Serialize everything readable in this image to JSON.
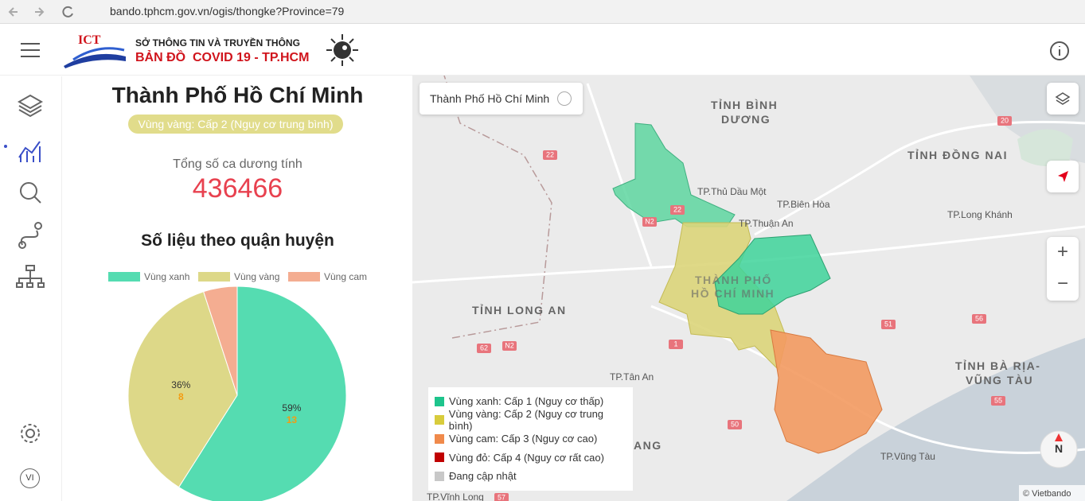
{
  "browser": {
    "url": "bando.tphcm.gov.vn/ogis/thongke?Province=79"
  },
  "header": {
    "logo": "ICT",
    "org": "SỞ THÔNG TIN VÀ TRUYỀN THÔNG",
    "title": "BẢN ĐỒ  COVID 19 - TP.HCM"
  },
  "sidebar": {
    "language": "VI"
  },
  "panel": {
    "city": "Thành Phố Hồ Chí Minh",
    "zone_badge": "Vùng vàng: Cấp 2 (Nguy cơ trung bình)",
    "total_label": "Tổng số ca dương tính",
    "total": 436466,
    "section_title": "Số liệu theo quận huyện"
  },
  "chart_data": {
    "type": "pie",
    "legend": "top",
    "categories": [
      "Vùng xanh",
      "Vùng vàng",
      "Vùng cam"
    ],
    "values": [
      59,
      36,
      5
    ],
    "value_labels": [
      "59%",
      "36%",
      null
    ],
    "counts": [
      13,
      8,
      null
    ],
    "colors": [
      "#55dcb1",
      "#ddd888",
      "#f4ad91"
    ]
  },
  "map": {
    "selector": "Thành Phố Hồ Chí Minh",
    "labels": [
      "TỈNH BÌNH",
      "DƯƠNG",
      "TỈNH ĐỒNG NAI",
      "TP.Thủ Dầu Một",
      "TP.Biên Hòa",
      "TP.Thuận An",
      "TP.Long Khánh",
      "THÀNH PHỐ",
      "HỒ CHÍ MINH",
      "TỈNH LONG AN",
      "TP.Tân An",
      "TỈNH BÀ RỊA-",
      "VŨNG TÀU",
      "TP.Vũng Tàu",
      "TP.Vĩnh Long",
      "ANG"
    ],
    "roads": [
      "22",
      "N2",
      "20",
      "62",
      "N2",
      "1",
      "51",
      "56",
      "55",
      "50",
      "57",
      "22"
    ],
    "legend": [
      {
        "label": "Vùng xanh: Cấp 1 (Nguy cơ thấp)",
        "color": "#1ec48c"
      },
      {
        "label": "Vùng vàng: Cấp 2 (Nguy cơ trung bình)",
        "color": "#d8cc3c"
      },
      {
        "label": "Vùng cam: Cấp 3 (Nguy cơ cao)",
        "color": "#f08a4b"
      },
      {
        "label": "Vùng đỏ: Cấp 4 (Nguy cơ rất cao)",
        "color": "#c00000"
      },
      {
        "label": "Đang cập nhật",
        "color": "#c8c8c8"
      }
    ],
    "compass": "N",
    "attribution": "© Vietbando",
    "zoom_in": "+",
    "zoom_out": "−"
  }
}
